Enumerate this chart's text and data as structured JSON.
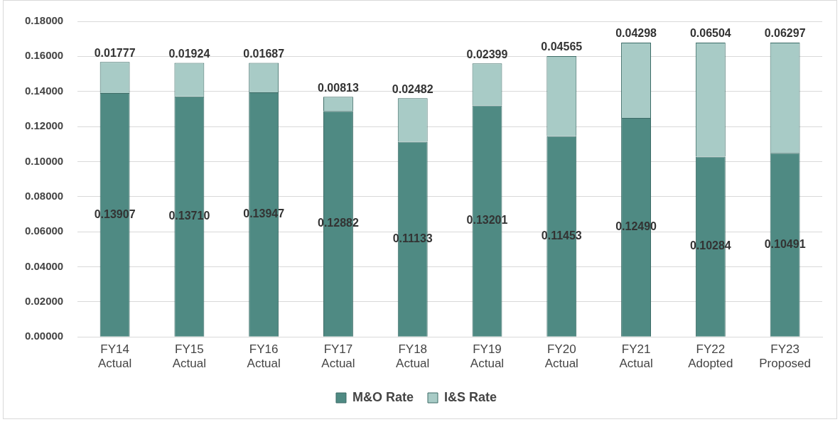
{
  "chart_data": {
    "type": "bar",
    "stacked": true,
    "categories": [
      "FY14\nActual",
      "FY15\nActual",
      "FY16\nActual",
      "FY17\nActual",
      "FY18\nActual",
      "FY19\nActual",
      "FY20\nActual",
      "FY21\nActual",
      "FY22\nAdopted",
      "FY23\nProposed"
    ],
    "series": [
      {
        "name": "M&O Rate",
        "color": "#4f8a83",
        "values": [
          0.13907,
          0.1371,
          0.13947,
          0.12882,
          0.11133,
          0.13201,
          0.11453,
          0.1249,
          0.10284,
          0.10491
        ],
        "value_labels": [
          "0.13907",
          "0.13710",
          "0.13947",
          "0.12882",
          "0.11133",
          "0.13201",
          "0.11453",
          "0.12490",
          "0.10284",
          "0.10491"
        ]
      },
      {
        "name": "I&S Rate",
        "color": "#a8cbc6",
        "values": [
          0.01777,
          0.01924,
          0.01687,
          0.00813,
          0.02482,
          0.02399,
          0.04565,
          0.04298,
          0.06504,
          0.06297
        ],
        "value_labels": [
          "0.01777",
          "0.01924",
          "0.01687",
          "0.00813",
          "0.02482",
          "0.02399",
          "0.04565",
          "0.04298",
          "0.06504",
          "0.06297"
        ]
      }
    ],
    "ylim": [
      0,
      0.18
    ],
    "yticks": [
      {
        "value": 0,
        "label": "0.00000"
      },
      {
        "value": 0.02,
        "label": "0.02000"
      },
      {
        "value": 0.04,
        "label": "0.04000"
      },
      {
        "value": 0.06,
        "label": "0.06000"
      },
      {
        "value": 0.08,
        "label": "0.08000"
      },
      {
        "value": 0.1,
        "label": "0.10000"
      },
      {
        "value": 0.12,
        "label": "0.12000"
      },
      {
        "value": 0.14,
        "label": "0.14000"
      },
      {
        "value": 0.16,
        "label": "0.16000"
      },
      {
        "value": 0.18,
        "label": "0.18000"
      }
    ],
    "grid": "y",
    "legend": "bottom"
  }
}
